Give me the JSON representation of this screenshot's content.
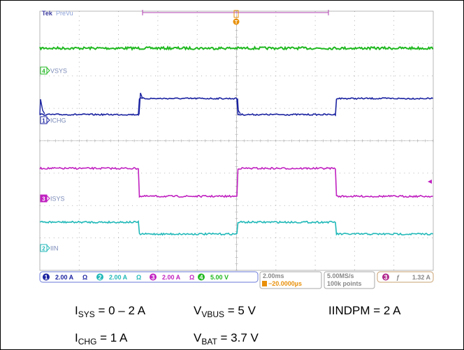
{
  "header": {
    "brand": "Tek",
    "mode": "PreVu"
  },
  "channels": [
    {
      "marker": "4",
      "label": "VSYS"
    },
    {
      "marker": "1",
      "label": "ICHG"
    },
    {
      "marker": "3",
      "label": "ISYS"
    },
    {
      "marker": "2",
      "label": "IIN"
    }
  ],
  "trigger_marker": "T",
  "status": {
    "channels": [
      {
        "number": "1",
        "scale": "2.00 A",
        "icon": "Ω"
      },
      {
        "number": "2",
        "scale": "2.00 A",
        "icon": "Ω"
      },
      {
        "number": "3",
        "scale": "2.00 A",
        "icon": "Ω"
      },
      {
        "number": "4",
        "scale": "5.00 V"
      }
    ],
    "timebase": "2.00ms",
    "delay": "−20.0000µs",
    "sample_rate": "5.00MS/s",
    "record_length": "100k points",
    "trigger_source": "3",
    "trigger_slope": "ƒ",
    "trigger_level": "1.32 A"
  },
  "captions": [
    {
      "main": "I",
      "sub": "SYS",
      "rest": " = 0 – 2 A"
    },
    {
      "main": "V",
      "sub": "VBUS",
      "rest": " = 5 V"
    },
    {
      "main": "IINDPM = 2 A",
      "sub": "",
      "rest": ""
    },
    {
      "main": "I",
      "sub": "CHG",
      "rest": " = 1 A"
    },
    {
      "main": "V",
      "sub": "BAT",
      "rest": " = 3.7 V"
    }
  ]
}
